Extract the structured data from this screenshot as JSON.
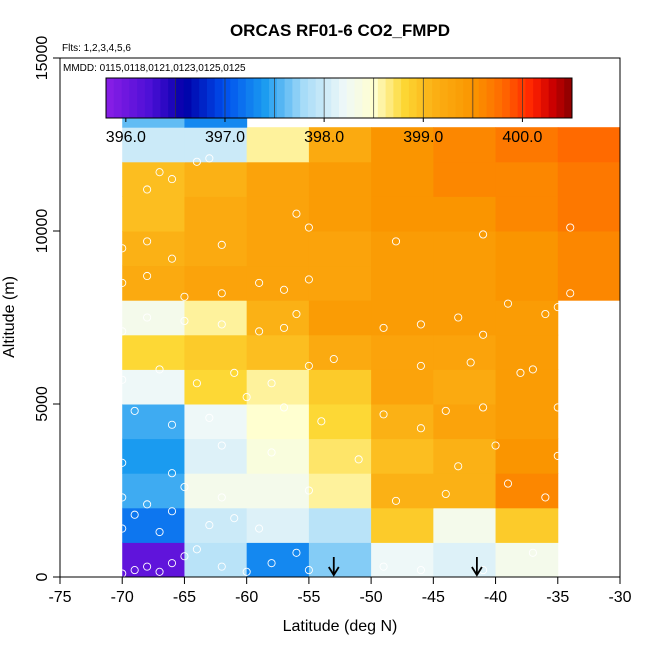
{
  "chart_data": {
    "type": "heatmap",
    "title": "ORCAS RF01-6 CO2_FMPD",
    "annotations": {
      "flights": "Flts: 1,2,3,4,5,6",
      "dates": "MMDD: 0115,0118,0121,0123,0125,0125"
    },
    "xlabel": "Latitude (deg N)",
    "ylabel": "Altitude (m)",
    "xlim": [
      -75,
      -30
    ],
    "ylim": [
      0,
      15000
    ],
    "x_ticks": [
      -75,
      -70,
      -65,
      -60,
      -55,
      -50,
      -45,
      -40,
      -35,
      -30
    ],
    "x_tick_labels": [
      "-75",
      "-70",
      "-65",
      "-60",
      "-55",
      "-50",
      "-45",
      "-40",
      "-35",
      "-30"
    ],
    "y_ticks": [
      0,
      5000,
      10000,
      15000
    ],
    "y_tick_labels": [
      "0",
      "5000",
      "10000",
      "15000"
    ],
    "colorbar": {
      "min": 395.8,
      "max": 400.5,
      "tick_values": [
        396.0,
        397.0,
        398.0,
        399.0,
        400.0
      ],
      "tick_labels": [
        "396.0",
        "397.0",
        "398.0",
        "399.0",
        "400.0"
      ],
      "stops": [
        {
          "v": 395.8,
          "c": "#8a1ee6"
        },
        {
          "v": 396.25,
          "c": "#4b0fd6"
        },
        {
          "v": 396.6,
          "c": "#0000a8"
        },
        {
          "v": 397.0,
          "c": "#0050ee"
        },
        {
          "v": 397.4,
          "c": "#1a9bf0"
        },
        {
          "v": 397.8,
          "c": "#a8dcf8"
        },
        {
          "v": 398.2,
          "c": "#eef8f8"
        },
        {
          "v": 398.5,
          "c": "#ffffd0"
        },
        {
          "v": 398.8,
          "c": "#fdd835"
        },
        {
          "v": 399.1,
          "c": "#fbb115"
        },
        {
          "v": 399.5,
          "c": "#fa9500"
        },
        {
          "v": 399.8,
          "c": "#ff6a00"
        },
        {
          "v": 400.1,
          "c": "#ff2200"
        },
        {
          "v": 400.3,
          "c": "#cc0000"
        },
        {
          "v": 400.5,
          "c": "#880000"
        }
      ]
    },
    "cell_size": {
      "lat": 5,
      "alt": 1000
    },
    "cells": [
      [
        -70,
        0,
        396.1
      ],
      [
        -65,
        0,
        397.9
      ],
      [
        -60,
        0,
        397.3
      ],
      [
        -55,
        0,
        397.7
      ],
      [
        -50,
        0,
        398.2
      ],
      [
        -45,
        0,
        398.1
      ],
      [
        -40,
        0,
        398.3
      ],
      [
        -70,
        1000,
        397.2
      ],
      [
        -65,
        1000,
        398.0
      ],
      [
        -60,
        1000,
        398.1
      ],
      [
        -55,
        1000,
        397.9
      ],
      [
        -50,
        1000,
        398.9
      ],
      [
        -45,
        1000,
        398.3
      ],
      [
        -40,
        1000,
        398.9
      ],
      [
        -70,
        2000,
        397.5
      ],
      [
        -65,
        2000,
        398.3
      ],
      [
        -60,
        2000,
        398.3
      ],
      [
        -55,
        2000,
        398.6
      ],
      [
        -50,
        2000,
        399.1
      ],
      [
        -45,
        2000,
        399.1
      ],
      [
        -40,
        2000,
        399.6
      ],
      [
        -70,
        3000,
        397.4
      ],
      [
        -65,
        3000,
        398.1
      ],
      [
        -60,
        3000,
        398.4
      ],
      [
        -55,
        3000,
        398.7
      ],
      [
        -50,
        3000,
        399.0
      ],
      [
        -45,
        3000,
        399.1
      ],
      [
        -40,
        3000,
        399.5
      ],
      [
        -70,
        4000,
        397.5
      ],
      [
        -65,
        4000,
        398.2
      ],
      [
        -60,
        4000,
        398.5
      ],
      [
        -55,
        4000,
        398.8
      ],
      [
        -50,
        4000,
        399.1
      ],
      [
        -45,
        4000,
        399.3
      ],
      [
        -40,
        4000,
        399.4
      ],
      [
        -70,
        5000,
        398.2
      ],
      [
        -65,
        5000,
        398.8
      ],
      [
        -60,
        5000,
        398.6
      ],
      [
        -55,
        5000,
        398.9
      ],
      [
        -50,
        5000,
        399.3
      ],
      [
        -45,
        5000,
        399.2
      ],
      [
        -40,
        5000,
        399.4
      ],
      [
        -70,
        6000,
        398.8
      ],
      [
        -65,
        6000,
        398.9
      ],
      [
        -60,
        6000,
        399.0
      ],
      [
        -55,
        6000,
        399.2
      ],
      [
        -50,
        6000,
        399.3
      ],
      [
        -45,
        6000,
        399.3
      ],
      [
        -40,
        6000,
        399.4
      ],
      [
        -70,
        7000,
        398.3
      ],
      [
        -65,
        7000,
        398.6
      ],
      [
        -60,
        7000,
        399.1
      ],
      [
        -55,
        7000,
        399.4
      ],
      [
        -50,
        7000,
        399.4
      ],
      [
        -45,
        7000,
        399.4
      ],
      [
        -40,
        7000,
        399.4
      ],
      [
        -70,
        8000,
        399.2
      ],
      [
        -65,
        8000,
        399.3
      ],
      [
        -60,
        8000,
        399.3
      ],
      [
        -55,
        8000,
        399.3
      ],
      [
        -50,
        8000,
        399.4
      ],
      [
        -45,
        8000,
        399.4
      ],
      [
        -40,
        8000,
        399.5
      ],
      [
        -35,
        8000,
        399.6
      ],
      [
        -70,
        9000,
        399.1
      ],
      [
        -65,
        9000,
        399.2
      ],
      [
        -60,
        9000,
        399.3
      ],
      [
        -55,
        9000,
        399.3
      ],
      [
        -50,
        9000,
        399.4
      ],
      [
        -45,
        9000,
        399.4
      ],
      [
        -40,
        9000,
        399.5
      ],
      [
        -35,
        9000,
        399.6
      ],
      [
        -70,
        10000,
        399.0
      ],
      [
        -65,
        10000,
        399.2
      ],
      [
        -60,
        10000,
        399.3
      ],
      [
        -55,
        10000,
        399.4
      ],
      [
        -50,
        10000,
        399.5
      ],
      [
        -45,
        10000,
        399.5
      ],
      [
        -40,
        10000,
        399.6
      ],
      [
        -35,
        10000,
        399.7
      ],
      [
        -70,
        11000,
        399.0
      ],
      [
        -65,
        11000,
        399.1
      ],
      [
        -60,
        11000,
        399.3
      ],
      [
        -55,
        11000,
        399.4
      ],
      [
        -50,
        11000,
        399.5
      ],
      [
        -45,
        11000,
        399.6
      ],
      [
        -40,
        11000,
        399.6
      ],
      [
        -35,
        11000,
        399.7
      ],
      [
        -70,
        12000,
        398.0
      ],
      [
        -65,
        12000,
        398.0
      ],
      [
        -60,
        12000,
        398.6
      ],
      [
        -55,
        12000,
        399.2
      ],
      [
        -50,
        12000,
        399.5
      ],
      [
        -45,
        12000,
        399.6
      ],
      [
        -40,
        12000,
        399.7
      ],
      [
        -35,
        12000,
        399.8
      ],
      [
        -70,
        13000,
        397.6
      ],
      [
        -65,
        13000,
        397.3
      ]
    ],
    "points": [
      [
        -70,
        100
      ],
      [
        -69,
        200
      ],
      [
        -68,
        300
      ],
      [
        -67,
        150
      ],
      [
        -66,
        400
      ],
      [
        -65,
        600
      ],
      [
        -64,
        800
      ],
      [
        -62,
        300
      ],
      [
        -60,
        150
      ],
      [
        -58,
        400
      ],
      [
        -56,
        700
      ],
      [
        -55,
        200
      ],
      [
        -49,
        300
      ],
      [
        -46,
        200
      ],
      [
        -41,
        200
      ],
      [
        -37,
        700
      ],
      [
        -70,
        1400
      ],
      [
        -69,
        1800
      ],
      [
        -67,
        1300
      ],
      [
        -66,
        1900
      ],
      [
        -63,
        1500
      ],
      [
        -61,
        1700
      ],
      [
        -59,
        1400
      ],
      [
        -70,
        2300
      ],
      [
        -68,
        2100
      ],
      [
        -65,
        2600
      ],
      [
        -62,
        2300
      ],
      [
        -55,
        2500
      ],
      [
        -48,
        2200
      ],
      [
        -44,
        2400
      ],
      [
        -39,
        2700
      ],
      [
        -36,
        2300
      ],
      [
        -70,
        3300
      ],
      [
        -66,
        3000
      ],
      [
        -62,
        3800
      ],
      [
        -58,
        3600
      ],
      [
        -51,
        3400
      ],
      [
        -43,
        3200
      ],
      [
        -40,
        3800
      ],
      [
        -35,
        3500
      ],
      [
        -69,
        4800
      ],
      [
        -66,
        4400
      ],
      [
        -63,
        4600
      ],
      [
        -60,
        5200
      ],
      [
        -57,
        4900
      ],
      [
        -54,
        4500
      ],
      [
        -49,
        4700
      ],
      [
        -46,
        4300
      ],
      [
        -44,
        4800
      ],
      [
        -41,
        4900
      ],
      [
        -35,
        4900
      ],
      [
        -70,
        5700
      ],
      [
        -67,
        6000
      ],
      [
        -64,
        5600
      ],
      [
        -61,
        5900
      ],
      [
        -58,
        5600
      ],
      [
        -55,
        6100
      ],
      [
        -53,
        6300
      ],
      [
        -46,
        6100
      ],
      [
        -42,
        6200
      ],
      [
        -38,
        5900
      ],
      [
        -37,
        6000
      ],
      [
        -70,
        7100
      ],
      [
        -68,
        7500
      ],
      [
        -65,
        7400
      ],
      [
        -62,
        7300
      ],
      [
        -59,
        7100
      ],
      [
        -57,
        7200
      ],
      [
        -56,
        7600
      ],
      [
        -49,
        7200
      ],
      [
        -46,
        7300
      ],
      [
        -43,
        7500
      ],
      [
        -41,
        7000
      ],
      [
        -36,
        7600
      ],
      [
        -35,
        7800
      ],
      [
        -70,
        8500
      ],
      [
        -68,
        8700
      ],
      [
        -65,
        8100
      ],
      [
        -62,
        8200
      ],
      [
        -59,
        8500
      ],
      [
        -57,
        8300
      ],
      [
        -55,
        8600
      ],
      [
        -39,
        7900
      ],
      [
        -34,
        8200
      ],
      [
        -70,
        9500
      ],
      [
        -68,
        9700
      ],
      [
        -66,
        9200
      ],
      [
        -62,
        9600
      ],
      [
        -48,
        9700
      ],
      [
        -41,
        9900
      ],
      [
        -56,
        10500
      ],
      [
        -55,
        10100
      ],
      [
        -34,
        10100
      ],
      [
        -68,
        11200
      ],
      [
        -67,
        11700
      ],
      [
        -66,
        11500
      ],
      [
        -64,
        12000
      ],
      [
        -63,
        12100
      ]
    ],
    "arrows": [
      -53,
      -41.5
    ]
  }
}
